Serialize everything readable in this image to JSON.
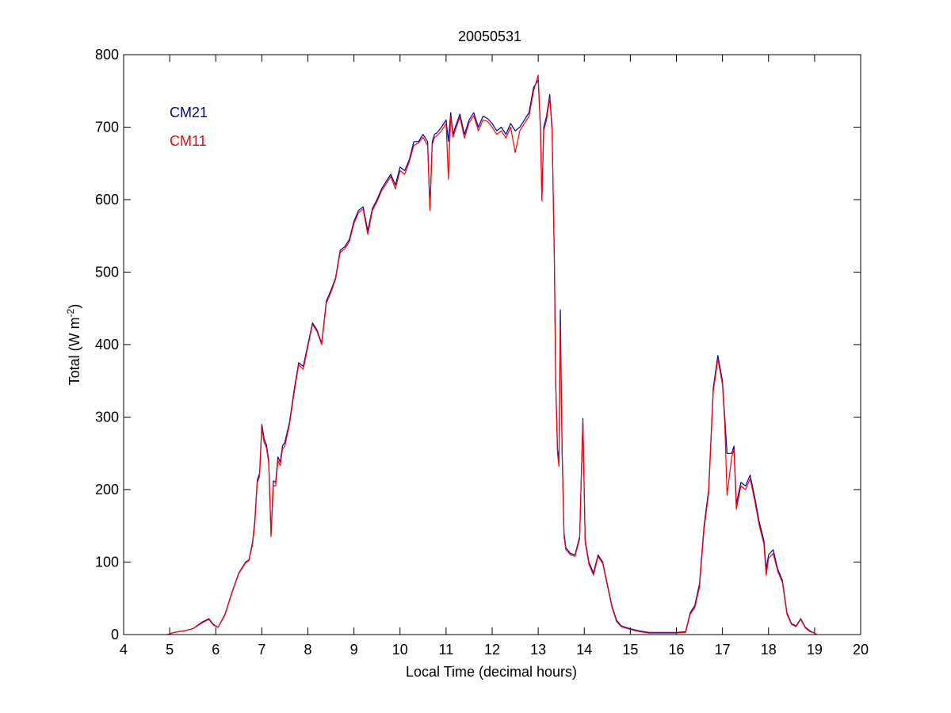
{
  "chart_data": {
    "type": "line",
    "title": "20050531",
    "xlabel": "Local Time (decimal hours)",
    "ylabel": "Total (W m",
    "ylabel_sup": "-2",
    "ylabel_end": ")",
    "xlim": [
      4,
      20
    ],
    "ylim": [
      0,
      800
    ],
    "xticks": [
      4,
      5,
      6,
      7,
      8,
      9,
      10,
      11,
      12,
      13,
      14,
      15,
      16,
      17,
      18,
      19,
      20
    ],
    "yticks": [
      0,
      100,
      200,
      300,
      400,
      500,
      600,
      700,
      800
    ],
    "grid": false,
    "legend_position": "top-left",
    "series": [
      {
        "name": "CM21",
        "color": "#0000aa",
        "x": [
          4.95,
          5.1,
          5.3,
          5.5,
          5.7,
          5.85,
          5.95,
          6.05,
          6.2,
          6.35,
          6.5,
          6.65,
          6.72,
          6.8,
          6.85,
          6.9,
          6.95,
          7.0,
          7.05,
          7.1,
          7.15,
          7.2,
          7.25,
          7.3,
          7.35,
          7.4,
          7.45,
          7.5,
          7.6,
          7.7,
          7.8,
          7.9,
          8.0,
          8.1,
          8.2,
          8.3,
          8.4,
          8.5,
          8.6,
          8.7,
          8.8,
          8.9,
          9.0,
          9.1,
          9.2,
          9.3,
          9.4,
          9.5,
          9.6,
          9.7,
          9.8,
          9.9,
          10.0,
          10.1,
          10.2,
          10.3,
          10.4,
          10.5,
          10.6,
          10.65,
          10.7,
          10.75,
          10.8,
          10.9,
          11.0,
          11.05,
          11.1,
          11.15,
          11.2,
          11.3,
          11.4,
          11.5,
          11.6,
          11.7,
          11.8,
          11.9,
          12.0,
          12.1,
          12.2,
          12.3,
          12.4,
          12.5,
          12.6,
          12.7,
          12.8,
          12.9,
          13.0,
          13.05,
          13.08,
          13.12,
          13.18,
          13.25,
          13.3,
          13.35,
          13.38,
          13.42,
          13.45,
          13.48,
          13.52,
          13.56,
          13.6,
          13.7,
          13.8,
          13.9,
          13.97,
          14.02,
          14.1,
          14.2,
          14.3,
          14.4,
          14.5,
          14.6,
          14.7,
          14.8,
          14.9,
          15.0,
          15.2,
          15.4,
          15.6,
          15.8,
          16.0,
          16.2,
          16.3,
          16.4,
          16.5,
          16.6,
          16.7,
          16.8,
          16.9,
          17.0,
          17.05,
          17.1,
          17.2,
          17.25,
          17.3,
          17.4,
          17.5,
          17.6,
          17.7,
          17.8,
          17.9,
          17.95,
          18.0,
          18.1,
          18.2,
          18.3,
          18.4,
          18.5,
          18.6,
          18.7,
          18.8,
          18.9,
          19.0,
          19.05
        ],
        "y": [
          0,
          3,
          5,
          8,
          17,
          22,
          14,
          10,
          28,
          58,
          85,
          100,
          103,
          128,
          160,
          213,
          222,
          290,
          270,
          262,
          240,
          138,
          212,
          210,
          245,
          238,
          260,
          265,
          293,
          337,
          375,
          370,
          400,
          430,
          420,
          402,
          460,
          475,
          492,
          530,
          535,
          545,
          570,
          585,
          590,
          557,
          588,
          600,
          615,
          625,
          635,
          620,
          645,
          640,
          655,
          680,
          680,
          690,
          680,
          588,
          680,
          690,
          692,
          700,
          710,
          680,
          720,
          690,
          700,
          718,
          690,
          710,
          720,
          700,
          715,
          712,
          705,
          695,
          700,
          690,
          705,
          695,
          700,
          710,
          720,
          755,
          765,
          700,
          600,
          700,
          715,
          745,
          700,
          520,
          350,
          255,
          240,
          448,
          250,
          140,
          120,
          112,
          110,
          135,
          298,
          130,
          100,
          85,
          110,
          100,
          70,
          40,
          20,
          12,
          10,
          8,
          5,
          3,
          3,
          3,
          3,
          4,
          30,
          40,
          70,
          150,
          200,
          340,
          385,
          350,
          300,
          250,
          250,
          260,
          180,
          210,
          205,
          220,
          190,
          155,
          130,
          90,
          110,
          117,
          90,
          75,
          30,
          15,
          12,
          22,
          10,
          5,
          2,
          0
        ]
      },
      {
        "name": "CM11",
        "color": "#ff0000",
        "x": [
          4.95,
          5.1,
          5.3,
          5.5,
          5.7,
          5.85,
          5.95,
          6.05,
          6.2,
          6.35,
          6.5,
          6.65,
          6.72,
          6.8,
          6.85,
          6.9,
          6.95,
          7.0,
          7.05,
          7.1,
          7.15,
          7.2,
          7.25,
          7.3,
          7.35,
          7.4,
          7.45,
          7.5,
          7.6,
          7.7,
          7.8,
          7.9,
          8.0,
          8.1,
          8.2,
          8.3,
          8.4,
          8.5,
          8.6,
          8.7,
          8.8,
          8.9,
          9.0,
          9.1,
          9.2,
          9.3,
          9.4,
          9.5,
          9.6,
          9.7,
          9.8,
          9.9,
          10.0,
          10.1,
          10.2,
          10.3,
          10.4,
          10.5,
          10.6,
          10.65,
          10.7,
          10.75,
          10.8,
          10.9,
          11.0,
          11.05,
          11.1,
          11.15,
          11.2,
          11.3,
          11.4,
          11.5,
          11.6,
          11.7,
          11.8,
          11.9,
          12.0,
          12.1,
          12.2,
          12.3,
          12.4,
          12.5,
          12.6,
          12.7,
          12.8,
          12.9,
          13.0,
          13.05,
          13.08,
          13.12,
          13.18,
          13.25,
          13.3,
          13.35,
          13.38,
          13.42,
          13.45,
          13.48,
          13.52,
          13.56,
          13.6,
          13.7,
          13.8,
          13.9,
          13.97,
          14.02,
          14.1,
          14.2,
          14.3,
          14.4,
          14.5,
          14.6,
          14.7,
          14.8,
          14.9,
          15.0,
          15.2,
          15.4,
          15.6,
          15.8,
          16.0,
          16.2,
          16.3,
          16.4,
          16.5,
          16.6,
          16.7,
          16.8,
          16.9,
          17.0,
          17.05,
          17.1,
          17.2,
          17.25,
          17.3,
          17.4,
          17.5,
          17.6,
          17.7,
          17.8,
          17.9,
          17.95,
          18.0,
          18.1,
          18.2,
          18.3,
          18.4,
          18.5,
          18.6,
          18.7,
          18.8,
          18.9,
          19.0,
          19.05
        ],
        "y": [
          0,
          3,
          5,
          8,
          16,
          21,
          13,
          10,
          27,
          57,
          84,
          99,
          102,
          125,
          155,
          210,
          218,
          285,
          265,
          258,
          236,
          135,
          205,
          205,
          240,
          233,
          256,
          260,
          290,
          333,
          372,
          366,
          397,
          428,
          418,
          400,
          457,
          472,
          490,
          527,
          532,
          542,
          567,
          582,
          587,
          552,
          585,
          597,
          612,
          622,
          632,
          615,
          640,
          635,
          652,
          675,
          678,
          686,
          675,
          585,
          676,
          686,
          688,
          695,
          705,
          628,
          715,
          686,
          696,
          714,
          685,
          706,
          716,
          695,
          710,
          708,
          700,
          690,
          695,
          685,
          700,
          665,
          695,
          705,
          715,
          750,
          772,
          695,
          598,
          695,
          710,
          740,
          695,
          515,
          345,
          250,
          232,
          425,
          245,
          135,
          117,
          110,
          108,
          132,
          295,
          127,
          97,
          82,
          108,
          98,
          68,
          38,
          18,
          11,
          9,
          7,
          4,
          2,
          2,
          2,
          2,
          3,
          28,
          37,
          65,
          145,
          195,
          335,
          380,
          345,
          292,
          192,
          245,
          255,
          173,
          205,
          200,
          215,
          185,
          150,
          125,
          82,
          105,
          112,
          87,
          72,
          28,
          14,
          11,
          21,
          9,
          4,
          2,
          0
        ]
      }
    ]
  }
}
